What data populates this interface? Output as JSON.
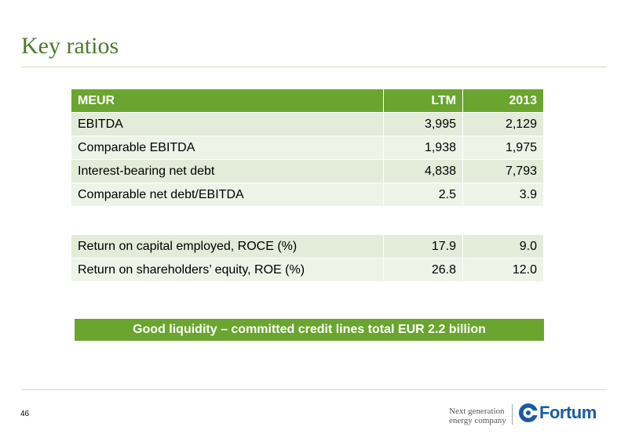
{
  "slide": {
    "title": "Key ratios",
    "page_number": "46"
  },
  "main_table": {
    "header": {
      "col1": "MEUR",
      "col2": "LTM",
      "col3": "2013"
    },
    "rows": [
      {
        "label": "EBITDA",
        "ltm": "3,995",
        "y2013": "2,129"
      },
      {
        "label": "Comparable EBITDA",
        "ltm": "1,938",
        "y2013": "1,975"
      },
      {
        "label": "Interest-bearing net debt",
        "ltm": "4,838",
        "y2013": "7,793"
      },
      {
        "label": "Comparable net debt/EBITDA",
        "ltm": "2.5",
        "y2013": "3.9"
      }
    ]
  },
  "returns_table": {
    "rows": [
      {
        "label": "Return on capital employed, ROCE (%)",
        "ltm": "17.9",
        "y2013": "9.0"
      },
      {
        "label": "Return on shareholders’ equity, ROE (%)",
        "ltm": "26.8",
        "y2013": "12.0"
      }
    ]
  },
  "banner": {
    "text": "Good liquidity – committed credit lines total EUR 2.2 billion"
  },
  "footer": {
    "tagline_line1": "Next generation",
    "tagline_line2": "energy company",
    "logo_text": "Fortum",
    "logo_icon": "fortum-logo-icon"
  },
  "colors": {
    "accent_green": "#6aa52f",
    "title_green": "#4a7b2a",
    "row_light": "#e3ebd9",
    "logo_blue": "#1a5aa0"
  }
}
